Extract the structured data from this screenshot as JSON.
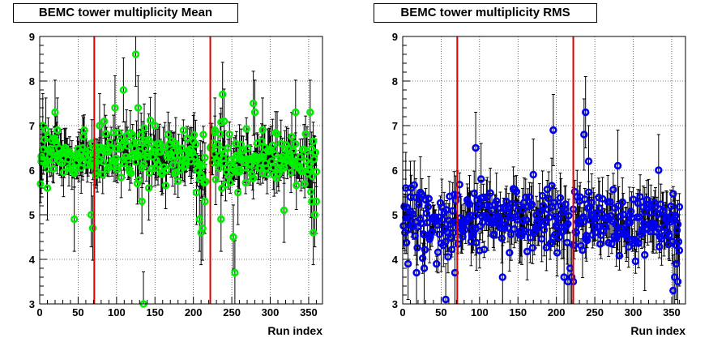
{
  "chart_data": [
    {
      "type": "scatter",
      "title": "BEMC tower multiplicity Mean",
      "xlabel": "Run index",
      "ylabel": "",
      "xlim": [
        0,
        368
      ],
      "ylim": [
        3,
        9
      ],
      "xticks": [
        0,
        50,
        100,
        150,
        200,
        250,
        300,
        350
      ],
      "yticks": [
        3,
        4,
        5,
        6,
        7,
        8,
        9
      ],
      "grid": true,
      "marker_color": "#00ee00",
      "vlines": [
        71,
        222
      ],
      "vline_color": "#dd0000",
      "baseline": 6.3,
      "spread": 0.33,
      "error_scale": 0.45,
      "points": [
        {
          "x": 2,
          "y": 6.2
        },
        {
          "x": 4,
          "y": 7.0
        },
        {
          "x": 8,
          "y": 6.9
        },
        {
          "x": 10,
          "y": 5.6
        },
        {
          "x": 20,
          "y": 7.3
        },
        {
          "x": 23,
          "y": 6.9
        },
        {
          "x": 45,
          "y": 4.9
        },
        {
          "x": 56,
          "y": 6.5
        },
        {
          "x": 67,
          "y": 5.0
        },
        {
          "x": 69,
          "y": 4.7
        },
        {
          "x": 78,
          "y": 7.0
        },
        {
          "x": 98,
          "y": 7.4
        },
        {
          "x": 109,
          "y": 7.8
        },
        {
          "x": 125,
          "y": 8.6
        },
        {
          "x": 128,
          "y": 7.4
        },
        {
          "x": 133,
          "y": 5.3
        },
        {
          "x": 135,
          "y": 3.0
        },
        {
          "x": 142,
          "y": 5.6
        },
        {
          "x": 150,
          "y": 7.0
        },
        {
          "x": 204,
          "y": 5.5
        },
        {
          "x": 208,
          "y": 4.9
        },
        {
          "x": 210,
          "y": 4.6
        },
        {
          "x": 212,
          "y": 4.7
        },
        {
          "x": 215,
          "y": 5.3
        },
        {
          "x": 228,
          "y": 6.9
        },
        {
          "x": 236,
          "y": 4.9
        },
        {
          "x": 238,
          "y": 7.7
        },
        {
          "x": 240,
          "y": 7.1
        },
        {
          "x": 252,
          "y": 4.5
        },
        {
          "x": 254,
          "y": 3.7
        },
        {
          "x": 258,
          "y": 5.5
        },
        {
          "x": 260,
          "y": 6.3
        },
        {
          "x": 278,
          "y": 7.5
        },
        {
          "x": 280,
          "y": 7.3
        },
        {
          "x": 290,
          "y": 6.9
        },
        {
          "x": 318,
          "y": 5.1
        },
        {
          "x": 333,
          "y": 7.3
        },
        {
          "x": 352,
          "y": 7.3
        },
        {
          "x": 354,
          "y": 5.3
        },
        {
          "x": 356,
          "y": 4.6
        },
        {
          "x": 358,
          "y": 5.0
        },
        {
          "x": 360,
          "y": 5.3
        }
      ]
    },
    {
      "type": "scatter",
      "title": "BEMC tower multiplicity RMS",
      "xlabel": "Run index",
      "ylabel": "",
      "xlim": [
        0,
        368
      ],
      "ylim": [
        3,
        9
      ],
      "xticks": [
        0,
        50,
        100,
        150,
        200,
        250,
        300,
        350
      ],
      "yticks": [
        3,
        4,
        5,
        6,
        7,
        8,
        9
      ],
      "grid": true,
      "marker_color": "#0000ee",
      "vlines": [
        71,
        222
      ],
      "vline_color": "#dd0000",
      "baseline": 4.85,
      "spread": 0.38,
      "error_scale": 0.5,
      "points": [
        {
          "x": 4,
          "y": 5.6
        },
        {
          "x": 7,
          "y": 3.9
        },
        {
          "x": 10,
          "y": 5.4
        },
        {
          "x": 18,
          "y": 3.7
        },
        {
          "x": 23,
          "y": 5.5
        },
        {
          "x": 28,
          "y": 3.8
        },
        {
          "x": 56,
          "y": 3.1
        },
        {
          "x": 68,
          "y": 3.7
        },
        {
          "x": 95,
          "y": 6.5
        },
        {
          "x": 102,
          "y": 5.8
        },
        {
          "x": 130,
          "y": 3.6
        },
        {
          "x": 170,
          "y": 5.9
        },
        {
          "x": 196,
          "y": 6.9
        },
        {
          "x": 210,
          "y": 3.6
        },
        {
          "x": 215,
          "y": 3.5
        },
        {
          "x": 218,
          "y": 3.8
        },
        {
          "x": 220,
          "y": 3.6
        },
        {
          "x": 222,
          "y": 3.5
        },
        {
          "x": 236,
          "y": 6.8
        },
        {
          "x": 238,
          "y": 7.3
        },
        {
          "x": 242,
          "y": 6.2
        },
        {
          "x": 280,
          "y": 6.1
        },
        {
          "x": 315,
          "y": 4.1
        },
        {
          "x": 333,
          "y": 6.0
        },
        {
          "x": 352,
          "y": 3.3
        },
        {
          "x": 354,
          "y": 3.6
        },
        {
          "x": 356,
          "y": 3.9
        },
        {
          "x": 358,
          "y": 3.5
        },
        {
          "x": 360,
          "y": 4.2
        }
      ]
    }
  ]
}
